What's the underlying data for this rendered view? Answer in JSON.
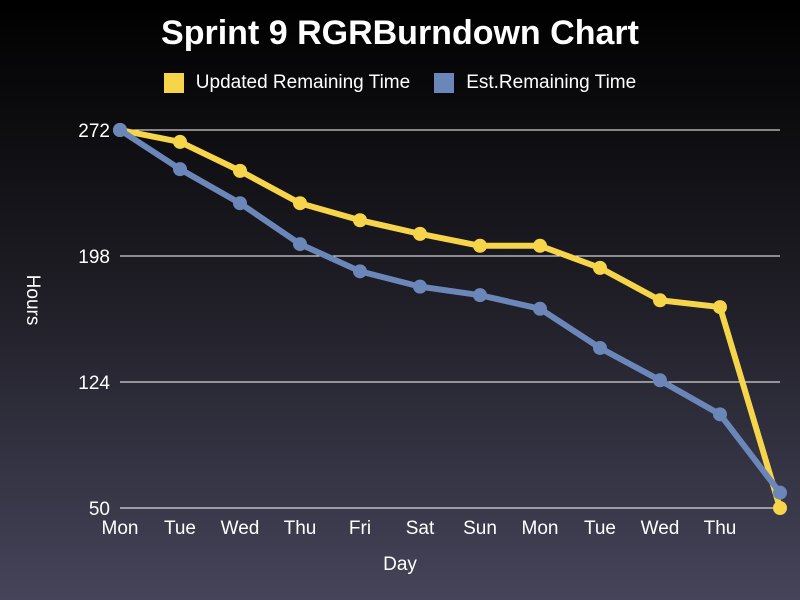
{
  "chart_data": {
    "type": "line",
    "title": "Sprint 9 RGRBurndown Chart",
    "xlabel": "Day",
    "ylabel": "Hours",
    "categories": [
      "Mon",
      "Tue",
      "Wed",
      "Thu",
      "Fri",
      "Sat",
      "Sun",
      "Mon",
      "Tue",
      "Wed",
      "Thu",
      ""
    ],
    "yticks": [
      272,
      198,
      124,
      50
    ],
    "ylim": [
      50,
      272
    ],
    "grid": true,
    "legend_position": "top-center",
    "series": [
      {
        "name": "Updated Remaining Time",
        "color": "#f7d54a",
        "values": [
          272,
          265,
          248,
          229,
          219,
          211,
          204,
          204,
          191,
          172,
          168,
          50
        ]
      },
      {
        "name": "Est.Remaining Time",
        "color": "#6b86b8",
        "values": [
          272,
          249,
          229,
          205,
          189,
          180,
          175,
          167,
          144,
          125,
          105,
          59
        ]
      }
    ]
  }
}
